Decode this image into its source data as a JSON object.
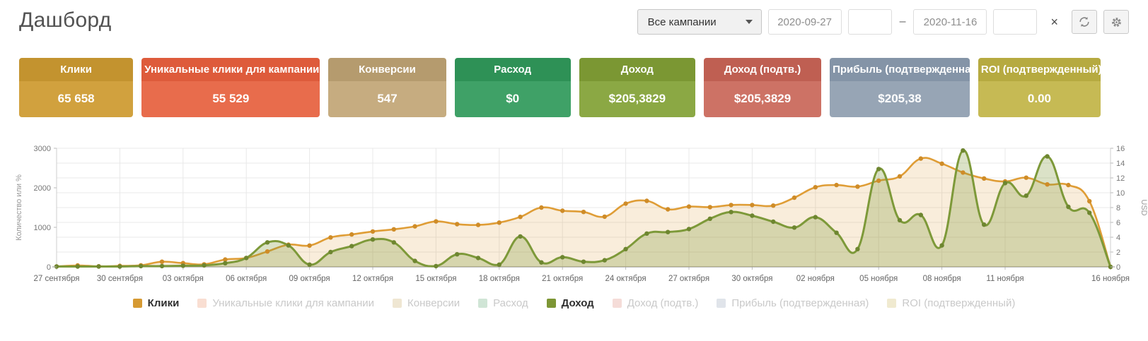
{
  "header": {
    "title": "Дашборд",
    "campaign_select": "Все кампании",
    "date_from": "2020-09-27",
    "date_to": "2020-11-16",
    "range_separator": "–",
    "clear_label": "×",
    "icons": [
      "chevron-down-icon",
      "close-icon",
      "refresh-icon",
      "gear-icon"
    ]
  },
  "stat_cards": [
    {
      "label": "Клики",
      "value": "65 658",
      "header_color": "#c3932f",
      "body_color": "#d1a13e"
    },
    {
      "label": "Уникальные клики для кампании",
      "value": "55 529",
      "header_color": "#de5b3b",
      "body_color": "#e86c4c"
    },
    {
      "label": "Конверсии",
      "value": "547",
      "header_color": "#b59b6e",
      "body_color": "#c6ac80"
    },
    {
      "label": "Расход",
      "value": "$0",
      "header_color": "#2e9156",
      "body_color": "#3fa167"
    },
    {
      "label": "Доход",
      "value": "$205,3829",
      "header_color": "#7b9733",
      "body_color": "#8ba844"
    },
    {
      "label": "Доход (подтв.)",
      "value": "$205,3829",
      "header_color": "#bf5f52",
      "body_color": "#cd7265"
    },
    {
      "label": "Прибыль (подтвержденная)",
      "value": "$205,38",
      "header_color": "#8494a7",
      "body_color": "#97a5b5"
    },
    {
      "label": "ROI (подтвержденный)",
      "value": "0.00",
      "header_color": "#b6aa40",
      "body_color": "#c6ba54"
    }
  ],
  "chart_data": {
    "type": "line",
    "x_start": "2020-09-27",
    "x_end": "2020-11-16",
    "point_count": 51,
    "x_ticks": [
      {
        "day": 0,
        "label": "27 сентября"
      },
      {
        "day": 3,
        "label": "30 сентября"
      },
      {
        "day": 6,
        "label": "03 октября"
      },
      {
        "day": 9,
        "label": "06 октября"
      },
      {
        "day": 12,
        "label": "09 октября"
      },
      {
        "day": 15,
        "label": "12 октября"
      },
      {
        "day": 18,
        "label": "15 октября"
      },
      {
        "day": 21,
        "label": "18 октября"
      },
      {
        "day": 24,
        "label": "21 октября"
      },
      {
        "day": 27,
        "label": "24 октября"
      },
      {
        "day": 30,
        "label": "27 октября"
      },
      {
        "day": 33,
        "label": "30 октября"
      },
      {
        "day": 36,
        "label": "02 ноября"
      },
      {
        "day": 39,
        "label": "05 ноября"
      },
      {
        "day": 42,
        "label": "08 ноября"
      },
      {
        "day": 45,
        "label": "11 ноября"
      },
      {
        "day": 50,
        "label": "16 ноября"
      }
    ],
    "left_axis": {
      "title": "Количество или %",
      "min": 0,
      "max": 3000,
      "ticks": [
        0,
        1000,
        2000,
        3000
      ]
    },
    "right_axis": {
      "title": "USD",
      "min": 0,
      "max": 16,
      "ticks": [
        0,
        2,
        4,
        6,
        8,
        10,
        12,
        14,
        16
      ]
    },
    "grid": true,
    "series": [
      {
        "name": "Клики",
        "axis": "left",
        "color": "#df9d36",
        "dot_color": "#cf8c28",
        "fill": "rgba(223,157,54,0.18)",
        "width": 2.6,
        "values": [
          10,
          35,
          15,
          25,
          40,
          130,
          95,
          65,
          185,
          225,
          390,
          560,
          540,
          745,
          820,
          895,
          950,
          1025,
          1150,
          1080,
          1060,
          1120,
          1265,
          1500,
          1420,
          1390,
          1270,
          1600,
          1670,
          1455,
          1525,
          1510,
          1565,
          1565,
          1550,
          1750,
          2015,
          2070,
          2030,
          2180,
          2290,
          2740,
          2610,
          2385,
          2235,
          2160,
          2255,
          2085,
          2070,
          1660,
          0
        ]
      },
      {
        "name": "Доход",
        "axis": "right",
        "color": "#7d9939",
        "dot_color": "#6e8630",
        "fill": "rgba(125,150,53,0.28)",
        "width": 3,
        "values": [
          0.05,
          0.05,
          0.05,
          0.05,
          0.1,
          0.1,
          0.15,
          0.2,
          0.5,
          1.2,
          3.3,
          2.9,
          0.3,
          2.0,
          2.8,
          3.7,
          3.3,
          0.8,
          0.1,
          1.7,
          1.2,
          0.3,
          4.1,
          0.6,
          1.3,
          0.7,
          0.9,
          2.4,
          4.5,
          4.7,
          5.1,
          6.5,
          7.4,
          6.9,
          6.1,
          5.3,
          6.7,
          4.6,
          2.4,
          13.2,
          6.3,
          7.0,
          2.9,
          15.7,
          5.7,
          11.3,
          9.6,
          14.9,
          8.1,
          7.3,
          0
        ]
      }
    ],
    "legend": [
      {
        "label": "Клики",
        "color": "#d69a33",
        "active": true
      },
      {
        "label": "Уникальные клики для кампании",
        "color": "#f9ded2",
        "active": false
      },
      {
        "label": "Конверсии",
        "color": "#efe6d2",
        "active": false
      },
      {
        "label": "Расход",
        "color": "#d0e5d6",
        "active": false
      },
      {
        "label": "Доход",
        "color": "#7d9635",
        "active": true
      },
      {
        "label": "Доход (подтв.)",
        "color": "#f5dcd8",
        "active": false
      },
      {
        "label": "Прибыль (подтвержденная)",
        "color": "#e0e4ea",
        "active": false
      },
      {
        "label": "ROI (подтвержденный)",
        "color": "#f0ead0",
        "active": false
      }
    ],
    "legend_position": "bottom"
  }
}
